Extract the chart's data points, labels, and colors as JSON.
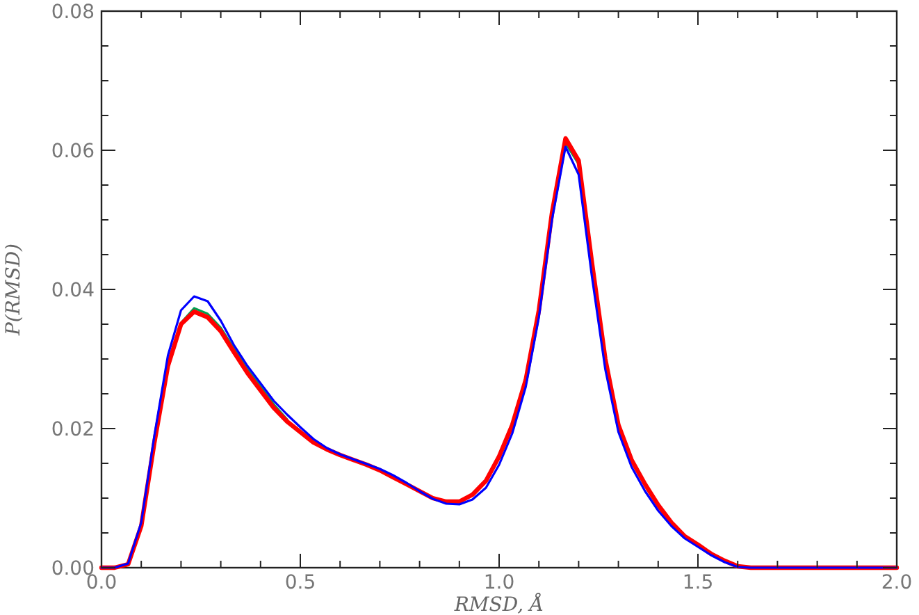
{
  "chart_data": {
    "type": "line",
    "xlabel": "RMSD, Å",
    "ylabel": "P(RMSD)",
    "x": [
      0,
      0.033,
      0.067,
      0.1,
      0.133,
      0.167,
      0.2,
      0.233,
      0.267,
      0.3,
      0.333,
      0.367,
      0.4,
      0.433,
      0.467,
      0.5,
      0.533,
      0.567,
      0.6,
      0.633,
      0.667,
      0.7,
      0.733,
      0.767,
      0.8,
      0.833,
      0.867,
      0.9,
      0.933,
      0.967,
      1.0,
      1.033,
      1.067,
      1.1,
      1.133,
      1.167,
      1.2,
      1.233,
      1.267,
      1.3,
      1.333,
      1.367,
      1.4,
      1.433,
      1.467,
      1.5,
      1.533,
      1.567,
      1.6,
      1.633,
      2.0
    ],
    "series": [
      {
        "color": "#00a050",
        "values": [
          null,
          null,
          null,
          null,
          null,
          null,
          0.0352,
          0.0373,
          0.0365,
          0.0345,
          0.0315,
          0.0285,
          0.026,
          0.0235,
          0.0213,
          null,
          null,
          null,
          null,
          null,
          null,
          null,
          null,
          null,
          null,
          null,
          null,
          null,
          null,
          null,
          null,
          null,
          null,
          null,
          null,
          0.061,
          0.058,
          null,
          null,
          null,
          null,
          null,
          null,
          null,
          null,
          null,
          null,
          null,
          null,
          null,
          null
        ]
      },
      {
        "color": "#ff0000",
        "values": [
          0,
          0,
          0.0005,
          0.006,
          0.018,
          0.029,
          0.035,
          0.0368,
          0.036,
          0.034,
          0.031,
          0.028,
          0.0255,
          0.023,
          0.021,
          0.0195,
          0.018,
          0.017,
          0.0162,
          0.0155,
          0.0148,
          0.014,
          0.013,
          0.012,
          0.011,
          0.01,
          0.0095,
          0.0095,
          0.0105,
          0.0125,
          0.016,
          0.0205,
          0.027,
          0.037,
          0.051,
          0.0617,
          0.0585,
          0.044,
          0.03,
          0.0205,
          0.0155,
          0.012,
          0.009,
          0.0065,
          0.0045,
          0.0033,
          0.002,
          0.001,
          0.0002,
          0,
          0
        ]
      },
      {
        "color": "#0000ff",
        "values": [
          0,
          0,
          0.0006,
          0.0065,
          0.019,
          0.0305,
          0.037,
          0.039,
          0.0383,
          0.0355,
          0.032,
          0.029,
          0.0265,
          0.024,
          0.022,
          0.0202,
          0.0185,
          0.0172,
          0.0163,
          0.0156,
          0.0149,
          0.0142,
          0.0133,
          0.0122,
          0.011,
          0.0099,
          0.0092,
          0.0091,
          0.0098,
          0.0115,
          0.0148,
          0.0193,
          0.026,
          0.036,
          0.05,
          0.0605,
          0.0565,
          0.042,
          0.0285,
          0.0195,
          0.0145,
          0.011,
          0.0082,
          0.006,
          0.0042,
          0.003,
          0.0018,
          0.0008,
          0.0001,
          0,
          0
        ]
      }
    ],
    "xlim": [
      0,
      2
    ],
    "ylim": [
      0,
      0.08
    ],
    "xticks": [
      {
        "value": 0,
        "label": "0.0"
      },
      {
        "value": 0.1,
        "label": null
      },
      {
        "value": 0.2,
        "label": null
      },
      {
        "value": 0.3,
        "label": null
      },
      {
        "value": 0.4,
        "label": null
      },
      {
        "value": 0.5,
        "label": "0.5"
      },
      {
        "value": 0.6,
        "label": null
      },
      {
        "value": 0.7,
        "label": null
      },
      {
        "value": 0.8,
        "label": null
      },
      {
        "value": 0.9,
        "label": null
      },
      {
        "value": 1,
        "label": "1.0"
      },
      {
        "value": 1.1,
        "label": null
      },
      {
        "value": 1.2,
        "label": null
      },
      {
        "value": 1.3,
        "label": null
      },
      {
        "value": 1.4,
        "label": null
      },
      {
        "value": 1.5,
        "label": "1.5"
      },
      {
        "value": 1.6,
        "label": null
      },
      {
        "value": 1.7,
        "label": null
      },
      {
        "value": 1.8,
        "label": null
      },
      {
        "value": 1.9,
        "label": null
      },
      {
        "value": 2,
        "label": "2.0"
      }
    ],
    "yticks": [
      {
        "value": 0,
        "label": "0.00"
      },
      {
        "value": 0.005,
        "label": null
      },
      {
        "value": 0.01,
        "label": null
      },
      {
        "value": 0.015,
        "label": null
      },
      {
        "value": 0.02,
        "label": "0.02"
      },
      {
        "value": 0.025,
        "label": null
      },
      {
        "value": 0.03,
        "label": null
      },
      {
        "value": 0.035,
        "label": null
      },
      {
        "value": 0.04,
        "label": "0.04"
      },
      {
        "value": 0.045,
        "label": null
      },
      {
        "value": 0.05,
        "label": null
      },
      {
        "value": 0.055,
        "label": null
      },
      {
        "value": 0.06,
        "label": "0.06"
      },
      {
        "value": 0.065,
        "label": null
      },
      {
        "value": 0.07,
        "label": null
      },
      {
        "value": 0.075,
        "label": null
      },
      {
        "value": 0.08,
        "label": "0.08"
      }
    ],
    "grid": false,
    "marker": "none",
    "line_style": "solid"
  }
}
